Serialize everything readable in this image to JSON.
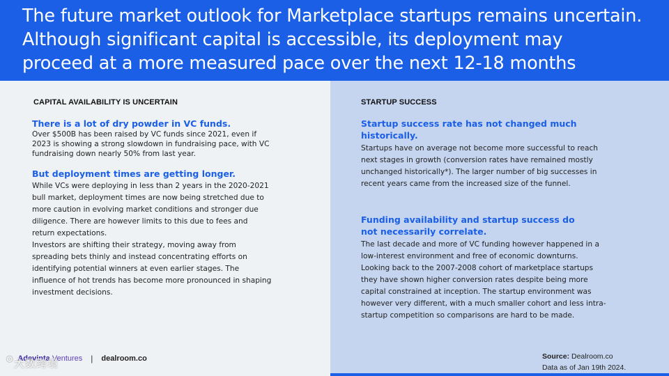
{
  "header": {
    "title": "The future market outlook for Marketplace startups remains uncertain.\nAlthough significant capital is accessible, its deployment may\nproceed at a more measured pace over the next 12-18 months"
  },
  "left": {
    "label": "CAPITAL AVAILABILITY IS UNCERTAIN",
    "h1": "There is a lot of dry powder in VC funds.",
    "p1": "Over $500B has been raised by VC funds since 2021, even if 2023 is showing a strong slowdown in fundraising pace, with VC fundraising down nearly 50% from last year.",
    "h2": "But deployment times are getting longer.",
    "p2": "While VCs were deploying in less than 2 years in the 2020-2021 bull market, deployment times are now being stretched due to more caution in evolving market conditions and stronger due diligence. There are however limits to this due to fees and return expectations.",
    "p3": "Investors are shifting their strategy, moving away from spreading bets thinly and instead concentrating efforts on identifying potential winners at even earlier stages. The influence of hot trends has become more pronounced in shaping investment decisions."
  },
  "right": {
    "label": "STARTUP SUCCESS",
    "h1": "Startup success rate has not changed much historically.",
    "p1": "Startups have on average not become more successful to reach next stages in growth (conversion rates have remained mostly unchanged historically*). The larger number of big successes in recent years came from the increased size of the funnel.",
    "h2": "Funding availability and startup success do not necessarily correlate.",
    "p2": "The last decade and more of VC funding however happened in a low-interest environment and free of economic downturns. Looking back to the 2007-2008 cohort of marketplace startups they have shown higher conversion rates despite being more capital constrained at inception. The startup environment was however very different, with a much smaller cohort and less intra-startup competition so comparisons are hard to be made."
  },
  "footer": {
    "adevinta_a": "Adevinta",
    "adevinta_b": " Ventures",
    "separator": "|",
    "dealroom": "dealroom.co",
    "source_label": "Source:",
    "source_value": " Dealroom.co",
    "data_as_of": "Data as of Jan 19th 2024.",
    "watermark": "大数跨境"
  }
}
